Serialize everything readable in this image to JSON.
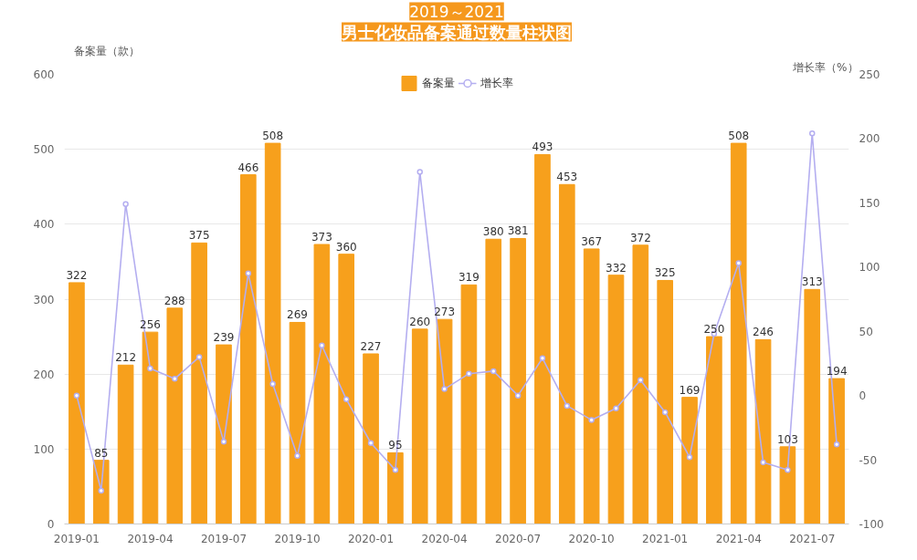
{
  "chart_data": {
    "type": "bar",
    "title": "男士化妆品备案通过数量柱状图",
    "subtitle": "2019～2021",
    "ylabel": "备案量（款）",
    "y2label": "增长率（%）",
    "categories": [
      "2019-01",
      null,
      null,
      "2019-04",
      null,
      null,
      "2019-07",
      null,
      null,
      "2019-10",
      null,
      null,
      "2020-01",
      null,
      null,
      "2020-04",
      null,
      null,
      "2020-07",
      null,
      null,
      "2020-10",
      null,
      null,
      "2021-01",
      null,
      null,
      "2021-04",
      null,
      null,
      "2021-07",
      null
    ],
    "series": [
      {
        "name": "备案量",
        "color": "#f7a01c",
        "values": [
          322,
          85,
          212,
          256,
          288,
          375,
          239,
          466,
          508,
          269,
          373,
          360,
          227,
          95,
          260,
          273,
          319,
          380,
          381,
          493,
          453,
          367,
          332,
          372,
          325,
          169,
          250,
          508,
          246,
          103,
          313,
          194
        ],
        "value_labels": [
          "322",
          "85",
          "212",
          "256",
          "288",
          "375",
          "239",
          "466",
          "508",
          "269",
          "373",
          "360",
          "227",
          "95",
          "260",
          "273",
          "319",
          "380",
          "381",
          "493",
          "453",
          "367",
          "332",
          "372",
          "325",
          "169",
          "250",
          "508",
          "246",
          "103",
          "313",
          "194"
        ]
      },
      {
        "name": "增长率",
        "type": "line",
        "axis": "y2",
        "color": "#b4aef0",
        "values": [
          0,
          -74,
          149,
          21,
          13,
          30,
          -36,
          95,
          9,
          -47,
          39,
          -3,
          -37,
          -58,
          174,
          5,
          17,
          19,
          0,
          29,
          -8,
          -19,
          -10,
          12,
          -13,
          -48,
          48,
          103,
          -52,
          -58,
          204,
          -38
        ]
      }
    ],
    "marker": "circle",
    "line_style": "solid",
    "ylim": [
      0,
      600
    ],
    "yticks": [
      0,
      100,
      200,
      300,
      400,
      500,
      600
    ],
    "y2lim": [
      -100,
      250
    ],
    "y2ticks": [
      -100,
      -50,
      0,
      50,
      100,
      150,
      200,
      250
    ],
    "grid": "y",
    "legend": "top"
  }
}
